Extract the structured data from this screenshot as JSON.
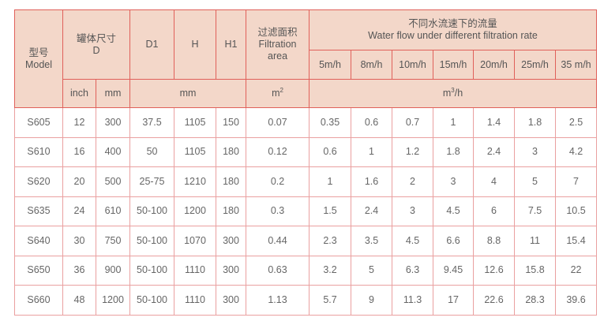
{
  "header": {
    "model_cn": "型号",
    "model_en": "Model",
    "tank_cn": "罐体尺寸",
    "tank_en": "D",
    "d1": "D1",
    "h": "H",
    "h1": "H1",
    "area_cn": "过滤面积",
    "area_en1": "Filtration",
    "area_en2": "area",
    "flow_cn": "不同水流速下的流量",
    "flow_en": "Water flow under different filtration rate",
    "rates": [
      "5m/h",
      "8m/h",
      "10m/h",
      "15m/h",
      "20m/h",
      "25m/h",
      "35 m/h"
    ],
    "unit_inch": "inch",
    "unit_mm": "mm",
    "unit_dim_mm": "mm",
    "unit_area": "m",
    "unit_area_sup": "2",
    "unit_flow": "m",
    "unit_flow_sup": "3",
    "unit_flow_tail": "/h"
  },
  "rows": [
    [
      "S605",
      "12",
      "300",
      "37.5",
      "1105",
      "150",
      "0.07",
      "0.35",
      "0.6",
      "0.7",
      "1",
      "1.4",
      "1.8",
      "2.5"
    ],
    [
      "S610",
      "16",
      "400",
      "50",
      "1105",
      "180",
      "0.12",
      "0.6",
      "1",
      "1.2",
      "1.8",
      "2.4",
      "3",
      "4.2"
    ],
    [
      "S620",
      "20",
      "500",
      "25-75",
      "1210",
      "180",
      "0.2",
      "1",
      "1.6",
      "2",
      "3",
      "4",
      "5",
      "7"
    ],
    [
      "S635",
      "24",
      "610",
      "50-100",
      "1200",
      "180",
      "0.3",
      "1.5",
      "2.4",
      "3",
      "4.5",
      "6",
      "7.5",
      "10.5"
    ],
    [
      "S640",
      "30",
      "750",
      "50-100",
      "1070",
      "300",
      "0.44",
      "2.3",
      "3.5",
      "4.5",
      "6.6",
      "8.8",
      "11",
      "15.4"
    ],
    [
      "S650",
      "36",
      "900",
      "50-100",
      "1110",
      "300",
      "0.63",
      "3.2",
      "5",
      "6.3",
      "9.45",
      "12.6",
      "15.8",
      "22"
    ],
    [
      "S660",
      "48",
      "1200",
      "50-100",
      "1110",
      "300",
      "1.13",
      "5.7",
      "9",
      "11.3",
      "17",
      "22.6",
      "28.3",
      "39.6"
    ]
  ],
  "colors": {
    "header_bg": "#f3d7c9",
    "border": "#e0605a"
  }
}
